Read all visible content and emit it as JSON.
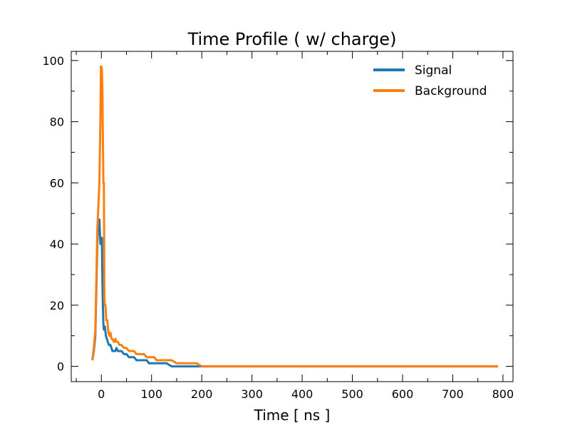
{
  "chart_data": {
    "type": "line",
    "title": "Time Profile ( w/ charge)",
    "xlabel": "Time [ ns ]",
    "ylabel": "",
    "xlim": [
      -60,
      820
    ],
    "ylim": [
      -5,
      103
    ],
    "xticks": [
      0,
      100,
      200,
      300,
      400,
      500,
      600,
      700,
      800
    ],
    "xtick_labels": [
      "0",
      "100",
      "200",
      "300",
      "400",
      "500",
      "600",
      "700",
      "800"
    ],
    "yticks": [
      0,
      20,
      40,
      60,
      80,
      100
    ],
    "ytick_labels": [
      "0",
      "20",
      "40",
      "60",
      "80",
      "100"
    ],
    "grid": false,
    "legend_position": "top-right",
    "series": [
      {
        "name": "Signal",
        "color": "#1f77b4",
        "x": [
          -18,
          -15,
          -12,
          -10,
          -8,
          -6,
          -4,
          -2,
          0,
          1,
          2,
          3,
          4,
          5,
          7,
          9,
          11,
          13,
          15,
          18,
          20,
          22,
          25,
          28,
          30,
          33,
          36,
          40,
          45,
          50,
          55,
          60,
          65,
          70,
          75,
          80,
          85,
          90,
          95,
          100,
          110,
          120,
          130,
          140,
          150,
          160,
          170,
          180,
          190,
          200,
          210,
          250,
          300,
          400,
          500,
          600,
          700,
          790
        ],
        "y": [
          2,
          5,
          10,
          25,
          40,
          48,
          48,
          40,
          40,
          42,
          28,
          20,
          14,
          12,
          13,
          10,
          9,
          8,
          7,
          7,
          6,
          5,
          5,
          5,
          6,
          5,
          5,
          5,
          4,
          4,
          3,
          3,
          3,
          2,
          2,
          2,
          2,
          2,
          1,
          1,
          1,
          1,
          1,
          0,
          0,
          0,
          0,
          0,
          0,
          0,
          0,
          0,
          0,
          0,
          0,
          0,
          0,
          0
        ]
      },
      {
        "name": "Background",
        "color": "#ff7f0e",
        "x": [
          -18,
          -15,
          -12,
          -10,
          -8,
          -6,
          -4,
          -2,
          -1,
          0,
          1,
          2,
          3,
          4,
          5,
          6,
          7,
          8,
          10,
          12,
          14,
          16,
          18,
          20,
          22,
          25,
          28,
          30,
          33,
          36,
          40,
          45,
          50,
          55,
          60,
          65,
          70,
          75,
          80,
          85,
          90,
          95,
          100,
          105,
          110,
          120,
          130,
          140,
          150,
          160,
          170,
          180,
          190,
          200,
          210,
          250,
          300,
          400,
          500,
          600,
          700,
          790
        ],
        "y": [
          2,
          6,
          12,
          28,
          45,
          52,
          60,
          80,
          98,
          98,
          97,
          90,
          75,
          60,
          60,
          22,
          20,
          20,
          15,
          15,
          11,
          10,
          11,
          9,
          9,
          8,
          9,
          8,
          8,
          7,
          7,
          6,
          6,
          5,
          5,
          5,
          4,
          4,
          4,
          4,
          3,
          3,
          3,
          3,
          2,
          2,
          2,
          2,
          1,
          1,
          1,
          1,
          1,
          0,
          0,
          0,
          0,
          0,
          0,
          0,
          0,
          0
        ]
      }
    ]
  }
}
